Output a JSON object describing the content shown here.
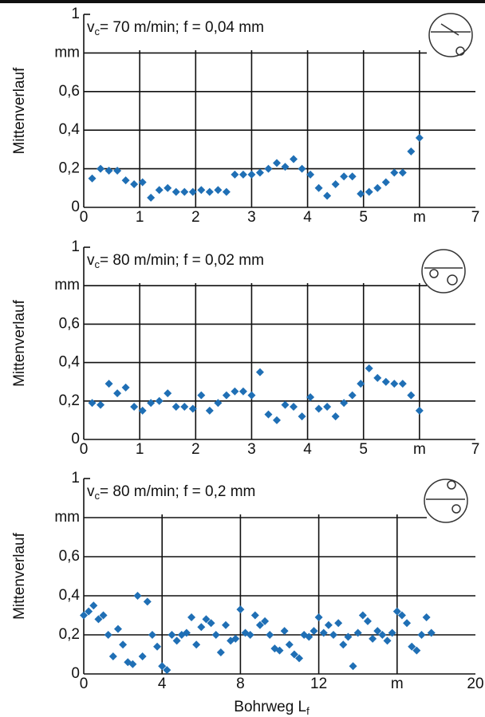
{
  "chart_data": [
    {
      "type": "scatter",
      "title": [
        "v",
        "c",
        "= 70 m/min; f = 0,04 mm"
      ],
      "ylabel": "Mittenverlauf",
      "color": "#1f6fb5",
      "grid": true,
      "xlim": [
        0,
        7
      ],
      "ylim": [
        0,
        1
      ],
      "xticks": [
        0,
        1,
        2,
        3,
        4,
        5,
        {
          "value": 6,
          "label": "m"
        },
        7
      ],
      "yticks": [
        0,
        {
          "value": 0.2,
          "label": "0,2"
        },
        {
          "value": 0.4,
          "label": "0,4"
        },
        {
          "value": 0.6,
          "label": "0,6"
        },
        {
          "value": 0.8,
          "label": "mm"
        },
        1
      ],
      "x": [
        0.15,
        0.3,
        0.45,
        0.6,
        0.75,
        0.9,
        1.05,
        1.2,
        1.35,
        1.5,
        1.65,
        1.8,
        1.95,
        2.1,
        2.25,
        2.4,
        2.55,
        2.7,
        2.85,
        3.0,
        3.15,
        3.3,
        3.45,
        3.6,
        3.75,
        3.9,
        4.05,
        4.2,
        4.35,
        4.5,
        4.65,
        4.8,
        4.95,
        5.1,
        5.25,
        5.4,
        5.55,
        5.7,
        5.85,
        6.0
      ],
      "values": [
        0.15,
        0.2,
        0.19,
        0.19,
        0.14,
        0.12,
        0.13,
        0.05,
        0.09,
        0.1,
        0.08,
        0.08,
        0.08,
        0.09,
        0.08,
        0.09,
        0.08,
        0.17,
        0.17,
        0.17,
        0.18,
        0.2,
        0.23,
        0.21,
        0.25,
        0.2,
        0.17,
        0.1,
        0.06,
        0.12,
        0.16,
        0.16,
        0.07,
        0.08,
        0.1,
        0.13,
        0.18,
        0.18,
        0.29,
        0.36
      ]
    },
    {
      "type": "scatter",
      "title": [
        "v",
        "c",
        "= 80 m/min; f = 0,02 mm"
      ],
      "ylabel": "Mittenverlauf",
      "color": "#1f6fb5",
      "grid": true,
      "xlim": [
        0,
        7
      ],
      "ylim": [
        0,
        1
      ],
      "xticks": [
        0,
        1,
        2,
        3,
        4,
        5,
        {
          "value": 6,
          "label": "m"
        },
        7
      ],
      "yticks": [
        0,
        {
          "value": 0.2,
          "label": "0,2"
        },
        {
          "value": 0.4,
          "label": "0,4"
        },
        {
          "value": 0.6,
          "label": "0,6"
        },
        {
          "value": 0.8,
          "label": "mm"
        },
        1
      ],
      "x": [
        0.15,
        0.3,
        0.45,
        0.6,
        0.75,
        0.9,
        1.05,
        1.2,
        1.35,
        1.5,
        1.65,
        1.8,
        1.95,
        2.1,
        2.25,
        2.4,
        2.55,
        2.7,
        2.85,
        3.0,
        3.15,
        3.3,
        3.45,
        3.6,
        3.75,
        3.9,
        4.05,
        4.2,
        4.35,
        4.5,
        4.65,
        4.8,
        4.95,
        5.1,
        5.25,
        5.4,
        5.55,
        5.7,
        5.85,
        6.0
      ],
      "values": [
        0.19,
        0.18,
        0.29,
        0.24,
        0.27,
        0.17,
        0.15,
        0.19,
        0.2,
        0.24,
        0.17,
        0.17,
        0.16,
        0.23,
        0.15,
        0.19,
        0.23,
        0.25,
        0.25,
        0.23,
        0.35,
        0.13,
        0.1,
        0.18,
        0.17,
        0.12,
        0.22,
        0.16,
        0.17,
        0.12,
        0.19,
        0.23,
        0.29,
        0.37,
        0.32,
        0.3,
        0.29,
        0.29,
        0.23,
        0.15
      ]
    },
    {
      "type": "scatter",
      "title": [
        "v",
        "c",
        "= 80 m/min; f = 0,2 mm"
      ],
      "ylabel": "Mittenverlauf",
      "xlabel": [
        "Bohrweg L",
        "f"
      ],
      "color": "#1f6fb5",
      "grid": true,
      "xlim": [
        0,
        20
      ],
      "ylim": [
        0,
        1
      ],
      "xticks": [
        0,
        4,
        8,
        12,
        {
          "value": 16,
          "label": "m"
        },
        20
      ],
      "yticks": [
        0,
        {
          "value": 0.2,
          "label": "0,2"
        },
        {
          "value": 0.4,
          "label": "0,4"
        },
        {
          "value": 0.6,
          "label": "0,6"
        },
        {
          "value": 0.8,
          "label": "mm"
        },
        1
      ],
      "x": [
        0,
        0.25,
        0.5,
        0.75,
        1,
        1.25,
        1.5,
        1.75,
        2,
        2.25,
        2.5,
        2.75,
        3,
        3.25,
        3.5,
        3.75,
        4,
        4.25,
        4.5,
        4.75,
        5,
        5.25,
        5.5,
        5.75,
        6,
        6.25,
        6.5,
        6.75,
        7,
        7.25,
        7.5,
        7.75,
        8,
        8.25,
        8.5,
        8.75,
        9,
        9.25,
        9.5,
        9.75,
        10,
        10.25,
        10.5,
        10.75,
        11,
        11.25,
        11.5,
        11.75,
        12,
        12.25,
        12.5,
        12.75,
        13,
        13.25,
        13.5,
        13.75,
        14,
        14.25,
        14.5,
        14.75,
        15,
        15.25,
        15.5,
        15.75,
        16,
        16.25,
        16.5,
        16.75,
        17,
        17.25,
        17.5,
        17.75
      ],
      "values": [
        0.3,
        0.32,
        0.35,
        0.28,
        0.3,
        0.2,
        0.09,
        0.23,
        0.15,
        0.06,
        0.05,
        0.4,
        0.09,
        0.37,
        0.2,
        0.14,
        0.04,
        0.02,
        0.2,
        0.17,
        0.2,
        0.21,
        0.29,
        0.15,
        0.24,
        0.28,
        0.26,
        0.2,
        0.11,
        0.25,
        0.17,
        0.18,
        0.33,
        0.21,
        0.2,
        0.3,
        0.25,
        0.27,
        0.2,
        0.13,
        0.12,
        0.22,
        0.15,
        0.1,
        0.08,
        0.2,
        0.19,
        0.22,
        0.29,
        0.21,
        0.25,
        0.2,
        0.26,
        0.15,
        0.19,
        0.04,
        0.21,
        0.3,
        0.27,
        0.18,
        0.22,
        0.2,
        0.17,
        0.21,
        0.32,
        0.3,
        0.26,
        0.14,
        0.12,
        0.2,
        0.29,
        0.21
      ]
    }
  ]
}
